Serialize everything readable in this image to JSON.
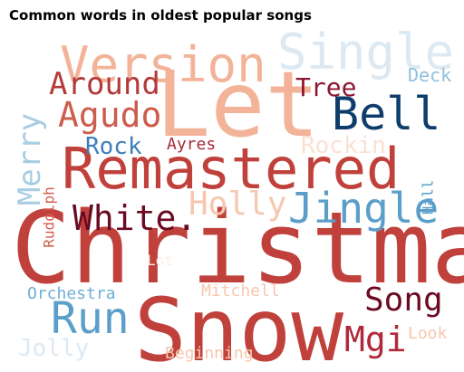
{
  "chart_data": {
    "type": "wordcloud",
    "title": "Common words in oldest popular songs",
    "colormap": "RdBu",
    "words": [
      {
        "text": "Christmas",
        "color": "#c0413c",
        "vertical": false
      },
      {
        "text": "Snow",
        "color": "#c0413c",
        "vertical": false
      },
      {
        "text": "Let",
        "color": "#f3b399",
        "vertical": false
      },
      {
        "text": "Remastered",
        "color": "#c0413c",
        "vertical": false
      },
      {
        "text": "Version",
        "color": "#f3b399",
        "vertical": false
      },
      {
        "text": "Single",
        "color": "#dde9f2",
        "vertical": false
      },
      {
        "text": "Bell",
        "color": "#0d3d6b",
        "vertical": false
      },
      {
        "text": "Jingle",
        "color": "#5a9ec9",
        "vertical": false
      },
      {
        "text": "Run",
        "color": "#5a9ec9",
        "vertical": false
      },
      {
        "text": "White.",
        "color": "#6b0a22",
        "vertical": false
      },
      {
        "text": "Holly",
        "color": "#f6c7ae",
        "vertical": false
      },
      {
        "text": "Agudo",
        "color": "#cd5c4d",
        "vertical": false
      },
      {
        "text": "Around",
        "color": "#b33a3a",
        "vertical": false
      },
      {
        "text": "Song",
        "color": "#6b0a22",
        "vertical": false
      },
      {
        "text": "Mgi",
        "color": "#b0283a",
        "vertical": false
      },
      {
        "text": "Merry",
        "color": "#a8cde3",
        "vertical": true
      },
      {
        "text": "Tree",
        "color": "#8e1530",
        "vertical": false
      },
      {
        "text": "Rock",
        "color": "#3f7fb8",
        "vertical": false
      },
      {
        "text": "Rockin",
        "color": "#fbe1d2",
        "vertical": false
      },
      {
        "text": "Jolly",
        "color": "#dde9f2",
        "vertical": false
      },
      {
        "text": "Ayres",
        "color": "#a82a38",
        "vertical": false
      },
      {
        "text": "Deck",
        "color": "#8fbfdd",
        "vertical": false
      },
      {
        "text": "Orchestra",
        "color": "#6faed4",
        "vertical": false
      },
      {
        "text": "Mitchell",
        "color": "#f6c7ae",
        "vertical": false
      },
      {
        "text": "Beginning",
        "color": "#f6c7ae",
        "vertical": false
      },
      {
        "text": "Look",
        "color": "#f6c7ae",
        "vertical": false
      },
      {
        "text": "Rudolph",
        "color": "#d6604d",
        "vertical": true
      },
      {
        "text": "Hall",
        "color": "#5a9ec9",
        "vertical": true
      },
      {
        "text": "Lot",
        "color": "#fbeee6",
        "vertical": false
      }
    ]
  }
}
